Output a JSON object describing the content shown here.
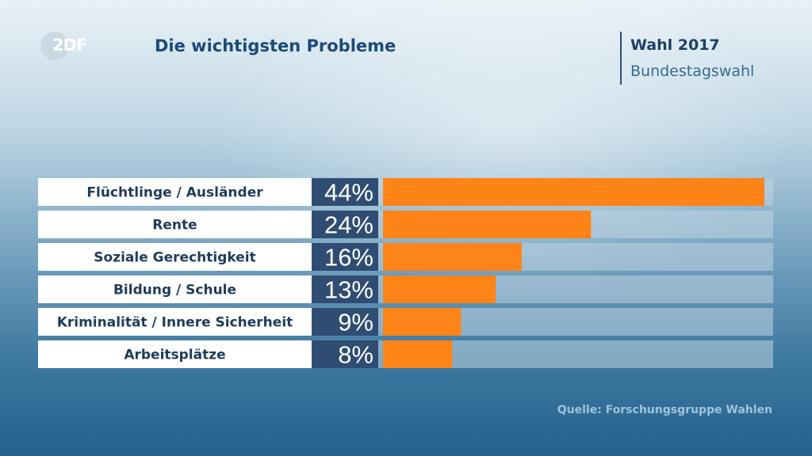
{
  "header": {
    "logo_text": "2DF",
    "title": "Die wichtigsten Probleme",
    "event_title": "Wahl 2017",
    "event_subtitle": "Bundestagswahl"
  },
  "footer": {
    "source": "Quelle: Forschungsgruppe Wahlen"
  },
  "colors": {
    "bar": "#ff8417",
    "label_bg": "#ffffff",
    "label_text": "#1f3b5c",
    "value_bg": "#2f4d73",
    "value_text": "#ffffff",
    "track": "#bfd3e2"
  },
  "chart_data": {
    "type": "bar",
    "orientation": "horizontal",
    "categories": [
      "Flüchtlinge / Ausländer",
      "Rente",
      "Soziale Gerechtigkeit",
      "Bildung / Schule",
      "Kriminalität / Innere Sicherheit",
      "Arbeitsplätze"
    ],
    "values": [
      44,
      24,
      16,
      13,
      9,
      8
    ],
    "value_labels": [
      "44%",
      "24%",
      "16%",
      "13%",
      "9%",
      "8%"
    ],
    "xlim": [
      0,
      45
    ],
    "unit": "%",
    "grid": false
  }
}
